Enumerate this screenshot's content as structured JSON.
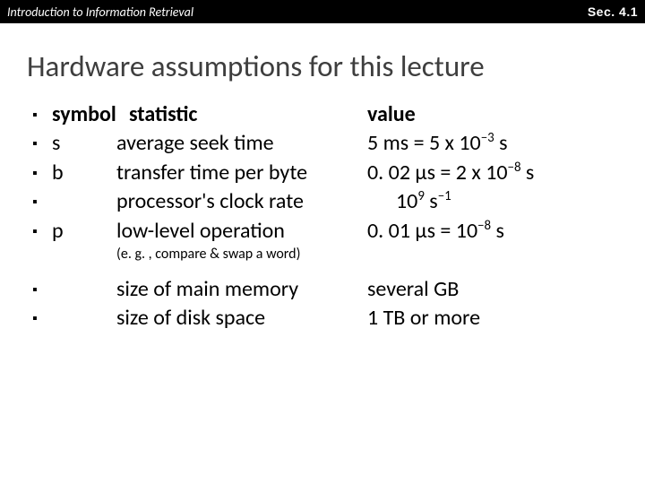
{
  "topbar": {
    "left": "Introduction to Information Retrieval",
    "right": "Sec. 4.1"
  },
  "title": "Hardware assumptions for this lecture",
  "header": {
    "symbol": "symbol",
    "statistic": "statistic",
    "value": "value"
  },
  "rows": [
    {
      "symbol": "s",
      "statistic": "average seek time",
      "value_html": "5 ms = 5 x 10<sup>−3</sup> s"
    },
    {
      "symbol": "b",
      "statistic": "transfer time per byte",
      "value_html": "0. 02 μs = 2 x 10<sup>−8</sup> s"
    },
    {
      "symbol": "",
      "statistic": "processor's clock rate",
      "value_html": "10<sup>9</sup> s<sup>−1</sup>",
      "indent": true
    },
    {
      "symbol": "p",
      "statistic": "low-level operation",
      "value_html": "0. 01 μs = 10<sup>−8</sup> s"
    }
  ],
  "note": "(e. g. , compare & swap a word)",
  "rows2": [
    {
      "symbol": "",
      "statistic": "size of main memory",
      "value_html": "several GB"
    },
    {
      "symbol": "",
      "statistic": "size of disk space",
      "value_html": "1 TB or more"
    }
  ],
  "colors": {
    "topbar_bg": "#000000",
    "topbar_text": "#ffffff",
    "title_text": "#3e3e3e",
    "body_text": "#000000",
    "background": "#ffffff"
  },
  "typography": {
    "title_fontsize": 33,
    "body_fontsize": 24,
    "note_fontsize": 16,
    "topbar_fontsize": 14
  }
}
